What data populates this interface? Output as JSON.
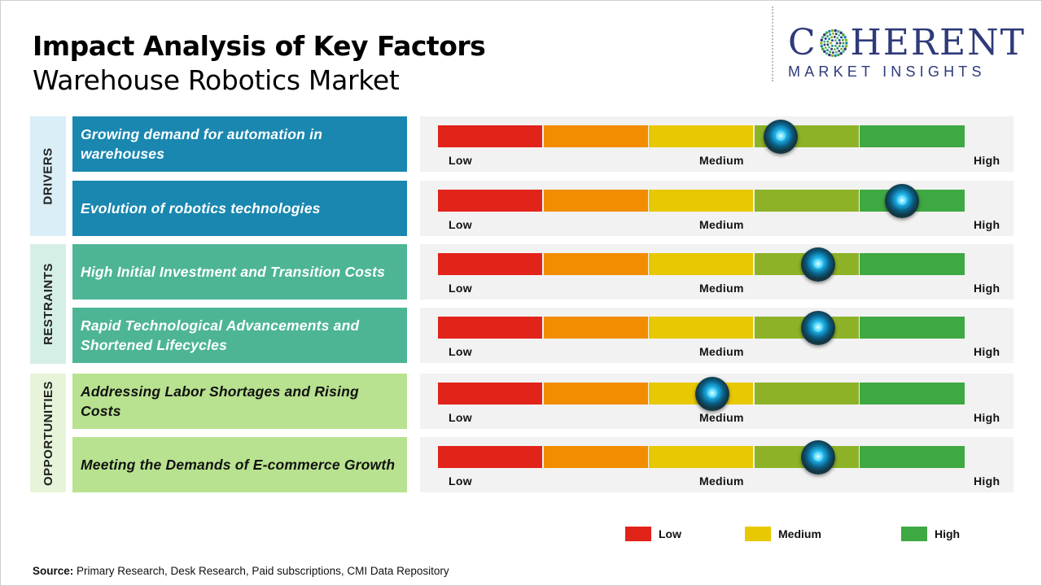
{
  "title": "Impact Analysis of Key Factors",
  "subtitle": "Warehouse Robotics Market",
  "logo": {
    "top": "C   HERENT",
    "top_left": "C",
    "top_right": "HERENT",
    "bottom": "MARKET INSIGHTS"
  },
  "categories": {
    "drivers": "DRIVERS",
    "restraints": "RESTRAINTS",
    "opportunities": "OPPORTUNITIES"
  },
  "scale_labels": {
    "low": "Low",
    "medium": "Medium",
    "high": "High"
  },
  "colors": {
    "red": "#e2231a",
    "orange": "#f28c00",
    "yellow": "#e8c800",
    "olive": "#8db227",
    "green": "#3ea843"
  },
  "chart_data": {
    "type": "gauge",
    "scale": [
      "Low",
      "Medium",
      "High"
    ],
    "segments": 5,
    "rows": [
      {
        "category": "DRIVERS",
        "factor": "Growing demand for automation in warehouses",
        "impact": 0.65
      },
      {
        "category": "DRIVERS",
        "factor": "Evolution of robotics technologies",
        "impact": 0.88
      },
      {
        "category": "RESTRAINTS",
        "factor": "High Initial Investment and Transition Costs",
        "impact": 0.72
      },
      {
        "category": "RESTRAINTS",
        "factor": "Rapid Technological Advancements and Shortened Lifecycles",
        "impact": 0.72
      },
      {
        "category": "OPPORTUNITIES",
        "factor": "Addressing Labor Shortages and Rising Costs",
        "impact": 0.52
      },
      {
        "category": "OPPORTUNITIES",
        "factor": "Meeting the Demands of E-commerce Growth",
        "impact": 0.72
      }
    ],
    "legend": [
      {
        "label": "Low",
        "color": "#e2231a"
      },
      {
        "label": "Medium",
        "color": "#e8c800"
      },
      {
        "label": "High",
        "color": "#3ea843"
      }
    ]
  },
  "source": {
    "label": "Source:",
    "text": " Primary Research, Desk Research, Paid subscriptions, CMI Data Repository"
  }
}
